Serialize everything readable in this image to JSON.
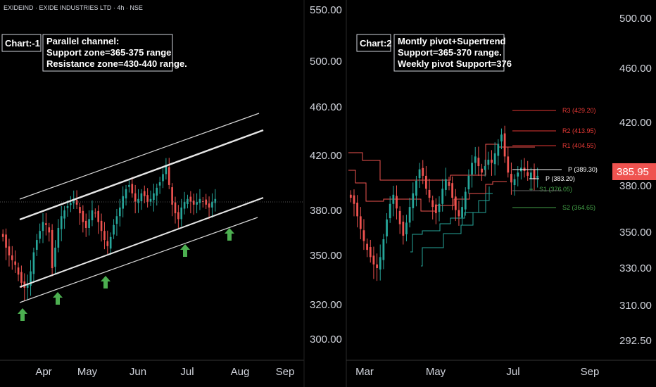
{
  "header": {
    "symbol_line": "EXIDEIND · EXIDE INDUSTRIES LTD · 4h · NSE"
  },
  "colors": {
    "background": "#000000",
    "up": "#26a69a",
    "down": "#ef5350",
    "price_badge": "#ef5350",
    "pivot_resistance": "#e53935",
    "pivot_support": "#43a047",
    "pivot_p": "#ffffff",
    "arrow": "#4caf50",
    "channel": "#d9d9d9"
  },
  "panel1": {
    "tag": "Chart:-1",
    "note_lines": [
      "Parallel channel:",
      "Support zone=365-375 range",
      "Resistance zone=430-440 range."
    ]
  },
  "panel2": {
    "tag": "Chart:2",
    "note_lines": [
      "Montly pivot+Supertrend",
      "Support=365-370 range.",
      "Weekly pivot Support=376"
    ],
    "last_price": "385.95"
  },
  "chart_data": [
    {
      "type": "candlestick",
      "title": "Chart:-1",
      "annotation": [
        "Parallel channel:",
        "Support zone=365-375 range",
        "Resistance zone=430-440 range."
      ],
      "x_ticks": [
        "Apr",
        "May",
        "Jun",
        "Jul",
        "Aug",
        "Sep"
      ],
      "y_ticks": [
        "300.00",
        "320.00",
        "350.00",
        "380.00",
        "420.00",
        "460.00",
        "500.00",
        "550.00"
      ],
      "ylim": [
        290,
        560
      ],
      "scale": "log",
      "channel": {
        "lower_line_y": [
          [
            0.03,
            318
          ],
          [
            0.44,
            378
          ]
        ],
        "upper_line_y": [
          [
            0.03,
            374
          ],
          [
            0.44,
            442
          ]
        ]
      },
      "support_arrows": 5,
      "close_series": [
        362,
        355,
        350,
        347,
        344,
        338,
        333,
        330,
        332,
        340,
        352,
        360,
        366,
        372,
        370,
        365,
        342,
        355,
        368,
        376,
        380,
        383,
        385,
        388,
        384,
        378,
        372,
        368,
        374,
        380,
        378,
        372,
        366,
        360,
        356,
        362,
        370,
        376,
        382,
        390,
        395,
        398,
        392,
        386,
        388,
        392,
        390,
        386,
        388,
        392,
        396,
        400,
        406,
        412,
        398,
        384,
        378,
        374,
        382,
        386,
        388,
        386,
        384,
        386,
        388,
        386,
        384,
        382,
        386,
        388
      ]
    },
    {
      "type": "candlestick",
      "title": "Chart:2",
      "annotation": [
        "Montly pivot+Supertrend",
        "Support=365-370 range.",
        "Weekly pivot Support=376"
      ],
      "x_ticks": [
        "Mar",
        "May",
        "Jul",
        "Sep"
      ],
      "y_ticks": [
        "292.50",
        "310.00",
        "330.00",
        "350.00",
        "380.00",
        "420.00",
        "460.00",
        "500.00"
      ],
      "ylim": [
        285,
        515
      ],
      "scale": "log",
      "last_price": 385.95,
      "pivots": [
        {
          "name": "R3",
          "value": 429.2,
          "label": "R3 (429.20)"
        },
        {
          "name": "R2",
          "value": 413.95,
          "label": "R2 (413.95)"
        },
        {
          "name": "R1",
          "value": 404.55,
          "label": "R1 (404.55)"
        },
        {
          "name": "P",
          "value": 389.3,
          "label": "P (389.30)"
        },
        {
          "name": "P",
          "value": 383.2,
          "label": "P (383.20)"
        },
        {
          "name": "S1",
          "value": 376.05,
          "label": "S1 (376.05)"
        },
        {
          "name": "S2",
          "value": 364.65,
          "label": "S2 (364.65)"
        }
      ],
      "close_series": [
        372,
        368,
        360,
        352,
        345,
        340,
        336,
        332,
        330,
        336,
        346,
        358,
        368,
        374,
        365,
        355,
        348,
        356,
        366,
        375,
        383,
        390,
        386,
        378,
        372,
        366,
        362,
        368,
        378,
        384,
        380,
        372,
        364,
        360,
        366,
        376,
        386,
        394,
        398,
        392,
        388,
        392,
        396,
        394,
        400,
        406,
        412,
        398,
        388,
        382,
        384,
        388,
        391,
        389,
        386,
        388,
        384,
        386
      ]
    }
  ]
}
